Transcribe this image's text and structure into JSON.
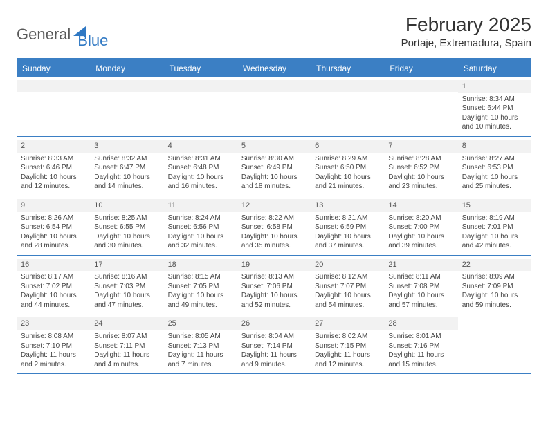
{
  "logo": {
    "text1": "General",
    "text2": "Blue"
  },
  "title": "February 2025",
  "location": "Portaje, Extremadura, Spain",
  "colors": {
    "header_bg": "#3b7fc4",
    "header_text": "#ffffff",
    "band_bg": "#f2f2f2",
    "border": "#3b7fc4",
    "text": "#444444"
  },
  "day_names": [
    "Sunday",
    "Monday",
    "Tuesday",
    "Wednesday",
    "Thursday",
    "Friday",
    "Saturday"
  ],
  "weeks": [
    [
      {
        "empty": true
      },
      {
        "empty": true
      },
      {
        "empty": true
      },
      {
        "empty": true
      },
      {
        "empty": true
      },
      {
        "empty": true
      },
      {
        "n": "1",
        "sunrise": "Sunrise: 8:34 AM",
        "sunset": "Sunset: 6:44 PM",
        "dl1": "Daylight: 10 hours",
        "dl2": "and 10 minutes."
      }
    ],
    [
      {
        "n": "2",
        "sunrise": "Sunrise: 8:33 AM",
        "sunset": "Sunset: 6:46 PM",
        "dl1": "Daylight: 10 hours",
        "dl2": "and 12 minutes."
      },
      {
        "n": "3",
        "sunrise": "Sunrise: 8:32 AM",
        "sunset": "Sunset: 6:47 PM",
        "dl1": "Daylight: 10 hours",
        "dl2": "and 14 minutes."
      },
      {
        "n": "4",
        "sunrise": "Sunrise: 8:31 AM",
        "sunset": "Sunset: 6:48 PM",
        "dl1": "Daylight: 10 hours",
        "dl2": "and 16 minutes."
      },
      {
        "n": "5",
        "sunrise": "Sunrise: 8:30 AM",
        "sunset": "Sunset: 6:49 PM",
        "dl1": "Daylight: 10 hours",
        "dl2": "and 18 minutes."
      },
      {
        "n": "6",
        "sunrise": "Sunrise: 8:29 AM",
        "sunset": "Sunset: 6:50 PM",
        "dl1": "Daylight: 10 hours",
        "dl2": "and 21 minutes."
      },
      {
        "n": "7",
        "sunrise": "Sunrise: 8:28 AM",
        "sunset": "Sunset: 6:52 PM",
        "dl1": "Daylight: 10 hours",
        "dl2": "and 23 minutes."
      },
      {
        "n": "8",
        "sunrise": "Sunrise: 8:27 AM",
        "sunset": "Sunset: 6:53 PM",
        "dl1": "Daylight: 10 hours",
        "dl2": "and 25 minutes."
      }
    ],
    [
      {
        "n": "9",
        "sunrise": "Sunrise: 8:26 AM",
        "sunset": "Sunset: 6:54 PM",
        "dl1": "Daylight: 10 hours",
        "dl2": "and 28 minutes."
      },
      {
        "n": "10",
        "sunrise": "Sunrise: 8:25 AM",
        "sunset": "Sunset: 6:55 PM",
        "dl1": "Daylight: 10 hours",
        "dl2": "and 30 minutes."
      },
      {
        "n": "11",
        "sunrise": "Sunrise: 8:24 AM",
        "sunset": "Sunset: 6:56 PM",
        "dl1": "Daylight: 10 hours",
        "dl2": "and 32 minutes."
      },
      {
        "n": "12",
        "sunrise": "Sunrise: 8:22 AM",
        "sunset": "Sunset: 6:58 PM",
        "dl1": "Daylight: 10 hours",
        "dl2": "and 35 minutes."
      },
      {
        "n": "13",
        "sunrise": "Sunrise: 8:21 AM",
        "sunset": "Sunset: 6:59 PM",
        "dl1": "Daylight: 10 hours",
        "dl2": "and 37 minutes."
      },
      {
        "n": "14",
        "sunrise": "Sunrise: 8:20 AM",
        "sunset": "Sunset: 7:00 PM",
        "dl1": "Daylight: 10 hours",
        "dl2": "and 39 minutes."
      },
      {
        "n": "15",
        "sunrise": "Sunrise: 8:19 AM",
        "sunset": "Sunset: 7:01 PM",
        "dl1": "Daylight: 10 hours",
        "dl2": "and 42 minutes."
      }
    ],
    [
      {
        "n": "16",
        "sunrise": "Sunrise: 8:17 AM",
        "sunset": "Sunset: 7:02 PM",
        "dl1": "Daylight: 10 hours",
        "dl2": "and 44 minutes."
      },
      {
        "n": "17",
        "sunrise": "Sunrise: 8:16 AM",
        "sunset": "Sunset: 7:03 PM",
        "dl1": "Daylight: 10 hours",
        "dl2": "and 47 minutes."
      },
      {
        "n": "18",
        "sunrise": "Sunrise: 8:15 AM",
        "sunset": "Sunset: 7:05 PM",
        "dl1": "Daylight: 10 hours",
        "dl2": "and 49 minutes."
      },
      {
        "n": "19",
        "sunrise": "Sunrise: 8:13 AM",
        "sunset": "Sunset: 7:06 PM",
        "dl1": "Daylight: 10 hours",
        "dl2": "and 52 minutes."
      },
      {
        "n": "20",
        "sunrise": "Sunrise: 8:12 AM",
        "sunset": "Sunset: 7:07 PM",
        "dl1": "Daylight: 10 hours",
        "dl2": "and 54 minutes."
      },
      {
        "n": "21",
        "sunrise": "Sunrise: 8:11 AM",
        "sunset": "Sunset: 7:08 PM",
        "dl1": "Daylight: 10 hours",
        "dl2": "and 57 minutes."
      },
      {
        "n": "22",
        "sunrise": "Sunrise: 8:09 AM",
        "sunset": "Sunset: 7:09 PM",
        "dl1": "Daylight: 10 hours",
        "dl2": "and 59 minutes."
      }
    ],
    [
      {
        "n": "23",
        "sunrise": "Sunrise: 8:08 AM",
        "sunset": "Sunset: 7:10 PM",
        "dl1": "Daylight: 11 hours",
        "dl2": "and 2 minutes."
      },
      {
        "n": "24",
        "sunrise": "Sunrise: 8:07 AM",
        "sunset": "Sunset: 7:11 PM",
        "dl1": "Daylight: 11 hours",
        "dl2": "and 4 minutes."
      },
      {
        "n": "25",
        "sunrise": "Sunrise: 8:05 AM",
        "sunset": "Sunset: 7:13 PM",
        "dl1": "Daylight: 11 hours",
        "dl2": "and 7 minutes."
      },
      {
        "n": "26",
        "sunrise": "Sunrise: 8:04 AM",
        "sunset": "Sunset: 7:14 PM",
        "dl1": "Daylight: 11 hours",
        "dl2": "and 9 minutes."
      },
      {
        "n": "27",
        "sunrise": "Sunrise: 8:02 AM",
        "sunset": "Sunset: 7:15 PM",
        "dl1": "Daylight: 11 hours",
        "dl2": "and 12 minutes."
      },
      {
        "n": "28",
        "sunrise": "Sunrise: 8:01 AM",
        "sunset": "Sunset: 7:16 PM",
        "dl1": "Daylight: 11 hours",
        "dl2": "and 15 minutes."
      },
      {
        "empty": true,
        "noband": true
      }
    ]
  ]
}
